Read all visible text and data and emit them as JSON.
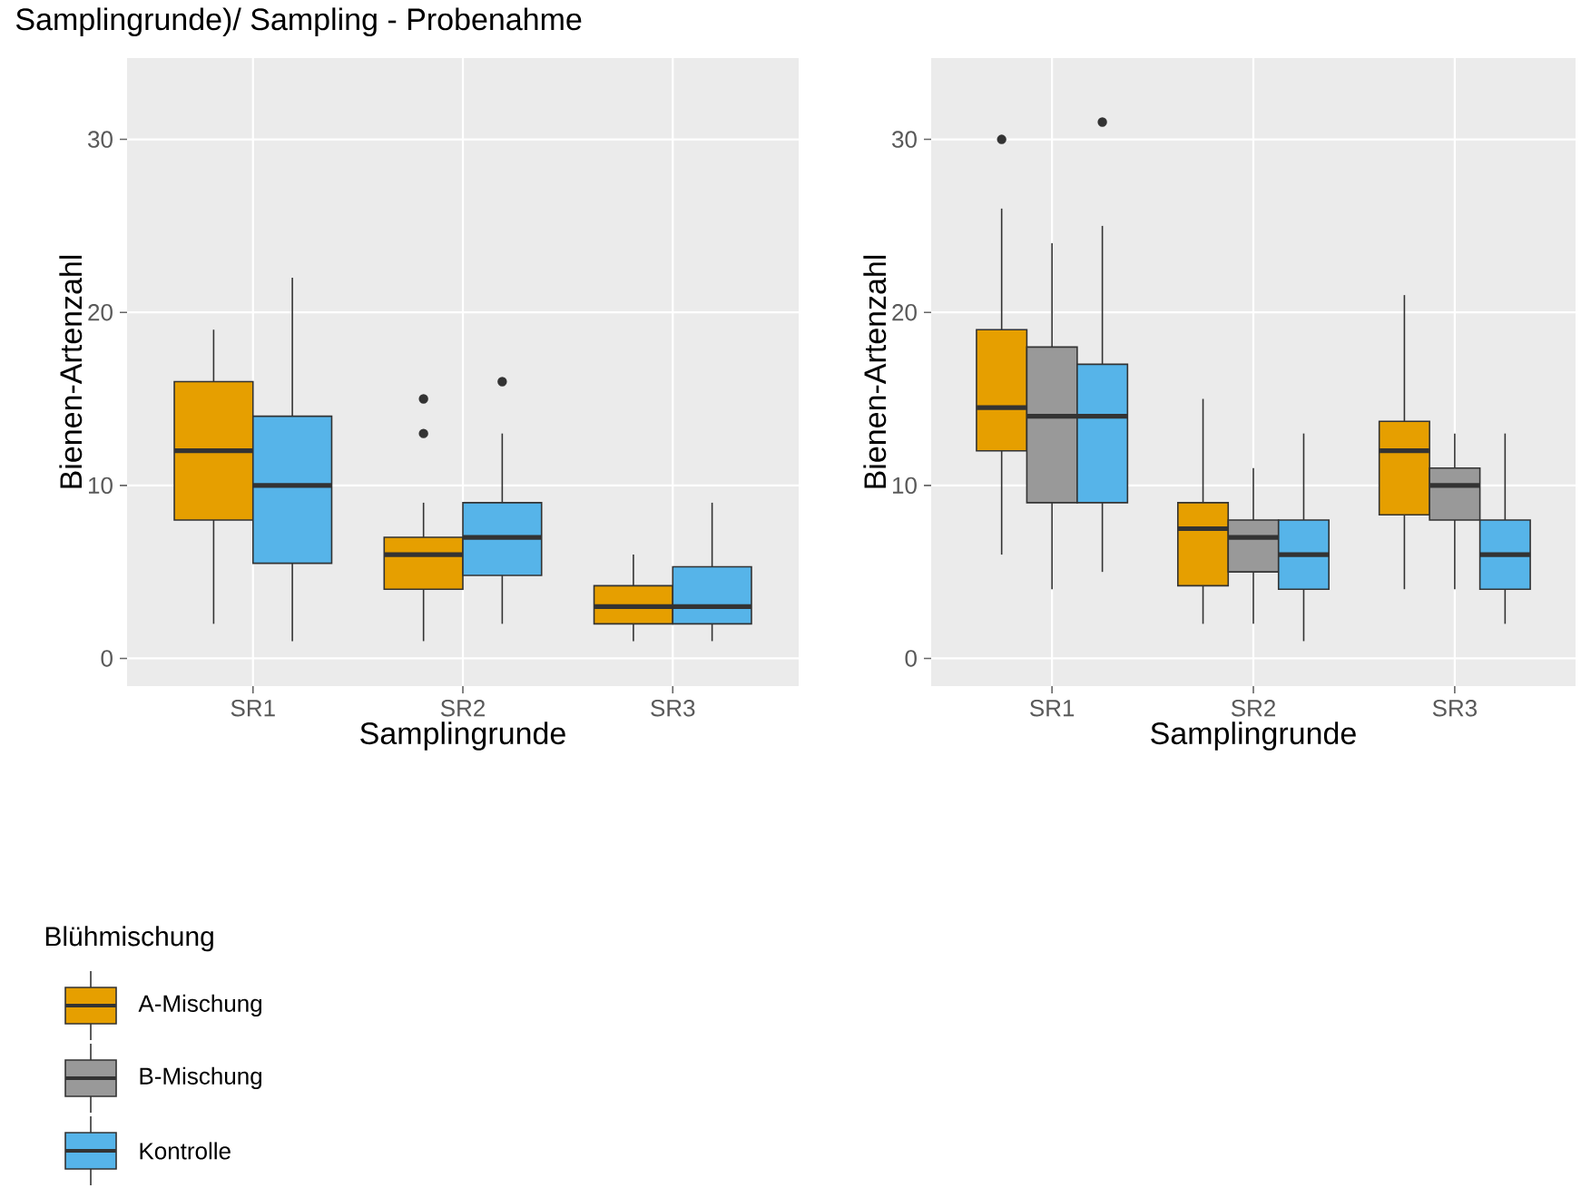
{
  "chart_data": [
    {
      "type": "box",
      "title": "Samplingrunde)/ Sampling - Probenahme",
      "xlabel": "Samplingrunde",
      "ylabel": "Bienen-Artenzahl",
      "categories": [
        "SR1",
        "SR2",
        "SR3"
      ],
      "ylim": [
        -1.6,
        34.7
      ],
      "yticks": [
        0,
        10,
        20,
        30
      ],
      "grid": true,
      "series": [
        {
          "color": "#e69f00",
          "boxes": [
            {
              "low": 2,
              "q1": 8,
              "median": 12,
              "q3": 16,
              "high": 19
            },
            {
              "low": 1,
              "q1": 4,
              "median": 6,
              "q3": 7,
              "high": 9,
              "outliers": [
                15,
                13
              ]
            },
            {
              "low": 1,
              "q1": 2,
              "median": 3,
              "q3": 4.2,
              "high": 6
            }
          ]
        },
        {
          "color": "#56b4e9",
          "boxes": [
            {
              "low": 1,
              "q1": 5.5,
              "median": 10,
              "q3": 14,
              "high": 22
            },
            {
              "low": 2,
              "q1": 4.8,
              "median": 7,
              "q3": 9,
              "high": 13,
              "outliers": [
                16
              ]
            },
            {
              "low": 1,
              "q1": 2,
              "median": 3,
              "q3": 5.3,
              "high": 9
            }
          ]
        }
      ]
    },
    {
      "type": "box",
      "xlabel": "Samplingrunde",
      "ylabel": "Bienen-Artenzahl",
      "categories": [
        "SR1",
        "SR2",
        "SR3"
      ],
      "ylim": [
        -1.6,
        34.7
      ],
      "yticks": [
        0,
        10,
        20,
        30
      ],
      "grid": true,
      "legend": "bottom left",
      "legend_title": "Blühmischung",
      "series": [
        {
          "name": "A-Mischung",
          "color": "#e69f00",
          "boxes": [
            {
              "low": 6,
              "q1": 12,
              "median": 14.5,
              "q3": 19,
              "high": 26,
              "outliers": [
                30
              ]
            },
            {
              "low": 2,
              "q1": 4.2,
              "median": 7.5,
              "q3": 9,
              "high": 15
            },
            {
              "low": 4,
              "q1": 8.3,
              "median": 12,
              "q3": 13.7,
              "high": 21
            }
          ]
        },
        {
          "name": "B-Mischung",
          "color": "#999999",
          "boxes": [
            {
              "low": 4,
              "q1": 9,
              "median": 14,
              "q3": 18,
              "high": 24
            },
            {
              "low": 2,
              "q1": 5,
              "median": 7,
              "q3": 8,
              "high": 11
            },
            {
              "low": 4,
              "q1": 8,
              "median": 10,
              "q3": 11,
              "high": 13
            }
          ]
        },
        {
          "name": "Kontrolle",
          "color": "#56b4e9",
          "boxes": [
            {
              "low": 5,
              "q1": 9,
              "median": 14,
              "q3": 17,
              "high": 25,
              "outliers": [
                31
              ]
            },
            {
              "low": 1,
              "q1": 4,
              "median": 6,
              "q3": 8,
              "high": 13
            },
            {
              "low": 2,
              "q1": 4,
              "median": 6,
              "q3": 8,
              "high": 13
            }
          ]
        }
      ]
    }
  ]
}
